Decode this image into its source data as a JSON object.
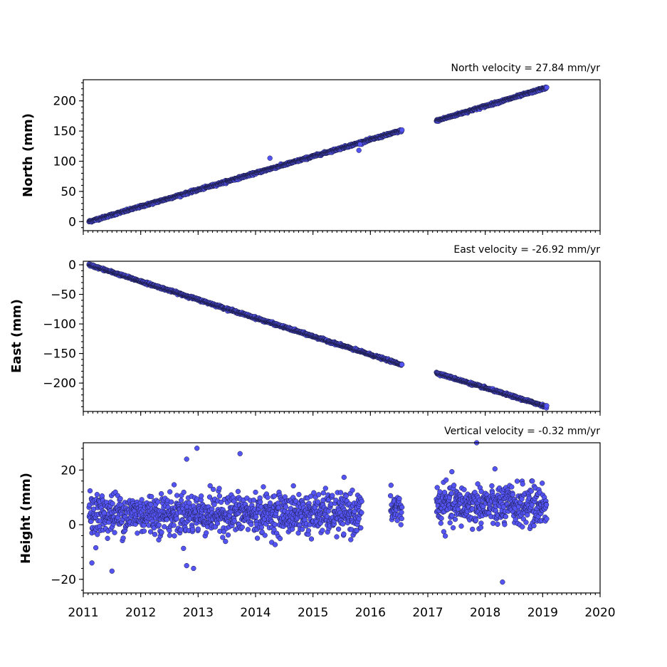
{
  "chart_data": [
    {
      "type": "scatter",
      "title": "North velocity = 27.84 mm/yr",
      "ylabel": "North (mm)",
      "xlabel": "",
      "xlim": [
        2011,
        2020
      ],
      "ylim": [
        -15,
        235
      ],
      "y_ticks": [
        0,
        50,
        100,
        150,
        200
      ],
      "y_tick_labels": [
        "0",
        "50",
        "100",
        "150",
        "200"
      ],
      "x_ticks": [
        2011,
        2012,
        2013,
        2014,
        2015,
        2016,
        2017,
        2018,
        2019,
        2020
      ],
      "x_tick_labels": [
        "",
        "",
        "",
        "",
        "",
        "",
        "",
        "",
        "",
        ""
      ],
      "velocity_mm_per_yr": 27.84,
      "segments": [
        {
          "x": [
            2011.1,
            2016.55
          ],
          "y": [
            0,
            151
          ],
          "note_points": "dense daily"
        },
        {
          "x": [
            2017.15,
            2019.07
          ],
          "y": [
            167,
            222
          ]
        }
      ],
      "outliers": [
        {
          "x": 2014.25,
          "y": 105
        },
        {
          "x": 2015.8,
          "y": 118
        },
        {
          "x": 2015.82,
          "y": 128
        }
      ],
      "color": "#5454f5"
    },
    {
      "type": "scatter",
      "title": "East velocity = -26.92 mm/yr",
      "ylabel": "East (mm)",
      "xlabel": "",
      "xlim": [
        2011,
        2020
      ],
      "ylim": [
        -248,
        6
      ],
      "y_ticks": [
        0,
        -50,
        -100,
        -150,
        -200
      ],
      "y_tick_labels": [
        "0",
        "−50",
        "−100",
        "−150",
        "−200"
      ],
      "x_ticks": [
        2011,
        2012,
        2013,
        2014,
        2015,
        2016,
        2017,
        2018,
        2019,
        2020
      ],
      "x_tick_labels": [
        "",
        "",
        "",
        "",
        "",
        "",
        "",
        "",
        "",
        ""
      ],
      "velocity_mm_per_yr": -26.92,
      "segments": [
        {
          "x": [
            2011.1,
            2016.55
          ],
          "y": [
            0,
            -169
          ]
        },
        {
          "x": [
            2017.15,
            2019.07
          ],
          "y": [
            -183,
            -240
          ]
        }
      ],
      "color": "#5454f5"
    },
    {
      "type": "scatter",
      "title": "Vertical velocity = -0.32 mm/yr",
      "ylabel": "Height (mm)",
      "xlabel": "",
      "xlim": [
        2011,
        2020
      ],
      "ylim": [
        -25,
        30
      ],
      "y_ticks": [
        20,
        0,
        -20
      ],
      "y_tick_labels": [
        "20",
        "0",
        "−20"
      ],
      "x_ticks": [
        2011,
        2012,
        2013,
        2014,
        2015,
        2016,
        2017,
        2018,
        2019,
        2020
      ],
      "x_tick_labels": [
        "2011",
        "2012",
        "2013",
        "2014",
        "2015",
        "2016",
        "2017",
        "2018",
        "2019",
        "2020"
      ],
      "velocity_mm_per_yr": -0.32,
      "segments": [
        {
          "x": [
            2011.1,
            2015.85
          ],
          "y_mean": 4,
          "spread": 5
        },
        {
          "x": [
            2016.35,
            2016.55
          ],
          "y_mean": 6,
          "spread": 4
        },
        {
          "x": [
            2017.15,
            2019.07
          ],
          "y_mean": 7,
          "spread": 5
        }
      ],
      "outliers": [
        {
          "x": 2012.8,
          "y": 24
        },
        {
          "x": 2012.98,
          "y": 28
        },
        {
          "x": 2013.73,
          "y": 26
        },
        {
          "x": 2017.85,
          "y": 30
        },
        {
          "x": 2018.3,
          "y": -21
        },
        {
          "x": 2011.5,
          "y": -17
        },
        {
          "x": 2012.8,
          "y": -15
        },
        {
          "x": 2012.92,
          "y": -16
        },
        {
          "x": 2011.15,
          "y": -14
        }
      ],
      "color": "#5454f5"
    }
  ]
}
